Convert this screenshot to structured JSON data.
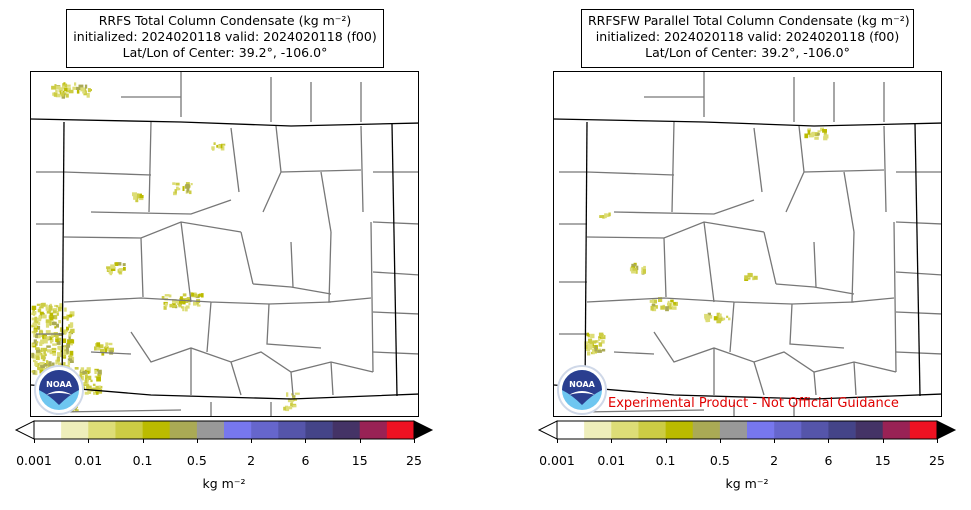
{
  "panels": [
    {
      "title_line1": "RRFS Total Column Condensate (kg m⁻²)",
      "title_line2": "initialized: 2024020118 valid: 2024020118 (f00)",
      "title_line3": "Lat/Lon of Center: 39.2°, -106.0°",
      "colorbar_unit": "kg m⁻²",
      "disclaimer": ""
    },
    {
      "title_line1": "RRFSFW Parallel Total Column Condensate (kg m⁻²)",
      "title_line2": "initialized: 2024020118 valid: 2024020118 (f00)",
      "title_line3": "Lat/Lon of Center: 39.2°, -106.0°",
      "colorbar_unit": "kg m⁻²",
      "disclaimer": "Experimental Product - Not Official Guidance"
    }
  ],
  "colorbar": {
    "tick_labels": [
      "0.001",
      "0.01",
      "0.1",
      "0.5",
      "2",
      "6",
      "15",
      "25"
    ],
    "colors": [
      "#ffffff",
      "#eeeebb",
      "#dddd77",
      "#cccc44",
      "#bbbb00",
      "#aaaa55",
      "#999999",
      "#7777ee",
      "#6666cc",
      "#5555aa",
      "#444488",
      "#443366",
      "#992255",
      "#ee1122"
    ],
    "extend": "both",
    "extend_max_color": "#000000"
  },
  "logo": {
    "text": "NOAA",
    "icon": "noaa-logo-icon"
  },
  "colors": {
    "county_lines": "#777777",
    "state_lines": "#000000",
    "condensate": "#cccc44"
  }
}
